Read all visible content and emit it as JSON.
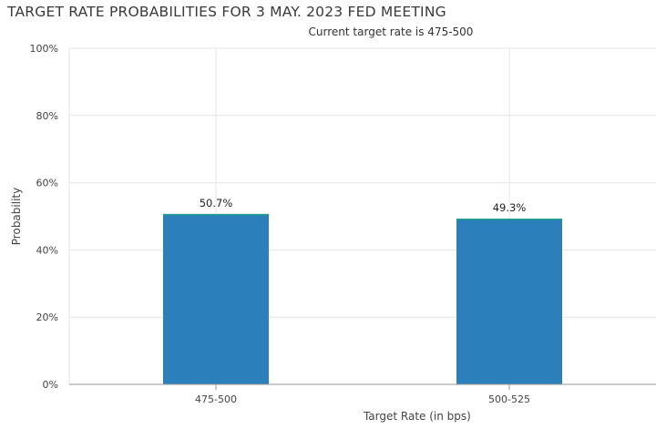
{
  "chart_data": {
    "type": "bar",
    "title": "TARGET RATE PROBABILITIES FOR 3 MAY. 2023 FED MEETING",
    "subtitle": "Current target rate is 475-500",
    "xlabel": "Target Rate (in bps)",
    "ylabel": "Probability",
    "categories": [
      "475-500",
      "500-525"
    ],
    "values": [
      50.7,
      49.3
    ],
    "data_labels": [
      "50.7%",
      "49.3%"
    ],
    "ylim": [
      0,
      100
    ],
    "yticks": [
      0,
      20,
      40,
      60,
      80,
      100
    ],
    "ytick_labels": [
      "0%",
      "20%",
      "40%",
      "60%",
      "80%",
      "100%"
    ],
    "grid": true,
    "colors": {
      "bar": "#2b7fbb",
      "bar_top": "#1f9e89",
      "grid": "#e6e6e6",
      "axis": "#999999"
    }
  }
}
